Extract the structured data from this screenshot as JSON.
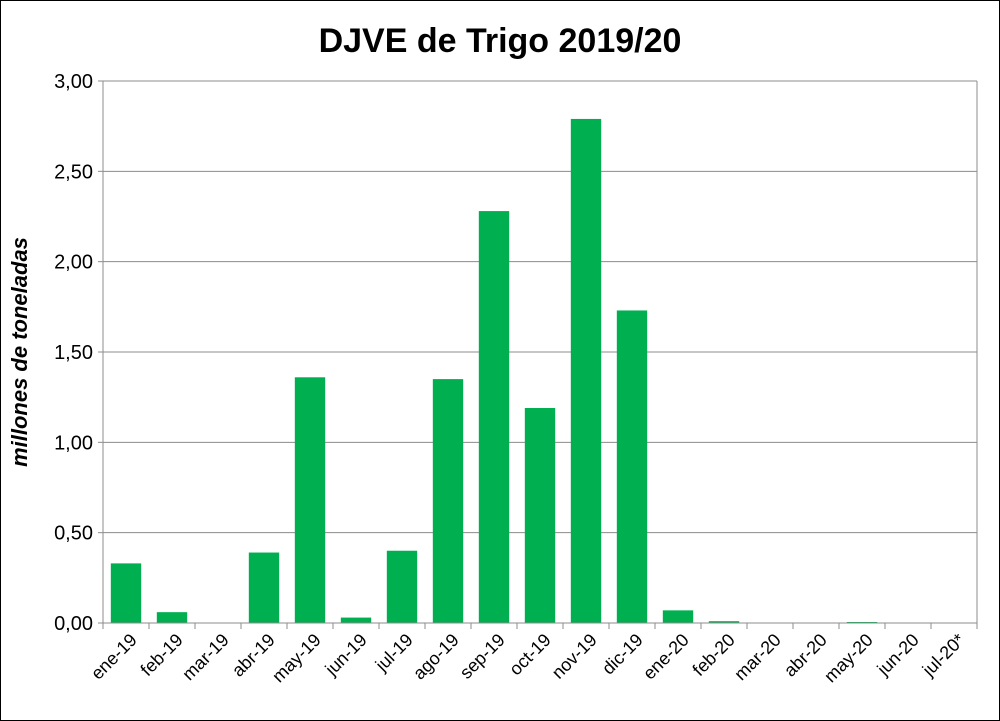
{
  "chart_data": {
    "type": "bar",
    "title": "DJVE de Trigo 2019/20",
    "xlabel": "",
    "ylabel": "millones de toneladas",
    "ylim": [
      0,
      3.0
    ],
    "yticks": [
      "0,00",
      "0,50",
      "1,00",
      "1,50",
      "2,00",
      "2,50",
      "3,00"
    ],
    "grid": true,
    "legend": "none",
    "bar_color": "#00B050",
    "categories": [
      "ene-19",
      "feb-19",
      "mar-19",
      "abr-19",
      "may-19",
      "jun-19",
      "jul-19",
      "ago-19",
      "sep-19",
      "oct-19",
      "nov-19",
      "dic-19",
      "ene-20",
      "feb-20",
      "mar-20",
      "abr-20",
      "may-20",
      "jun-20",
      "jul-20*"
    ],
    "values": [
      0.33,
      0.06,
      0.0,
      0.39,
      1.36,
      0.03,
      0.4,
      1.35,
      2.28,
      1.19,
      2.79,
      1.73,
      0.07,
      0.01,
      0.0,
      0.0,
      0.005,
      0.0,
      0.0
    ]
  }
}
